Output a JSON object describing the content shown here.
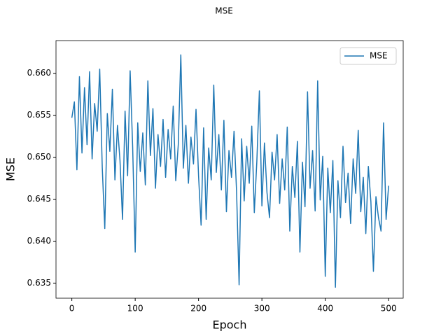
{
  "chart_data": {
    "type": "line",
    "title": "MSE",
    "xlabel": "Epoch",
    "ylabel": "MSE",
    "x": [
      0,
      4,
      8,
      12,
      16,
      20,
      24,
      28,
      32,
      36,
      40,
      44,
      48,
      52,
      56,
      60,
      64,
      68,
      72,
      76,
      80,
      84,
      88,
      92,
      96,
      100,
      104,
      108,
      112,
      116,
      120,
      124,
      128,
      132,
      136,
      140,
      144,
      148,
      152,
      156,
      160,
      164,
      168,
      172,
      176,
      180,
      184,
      188,
      192,
      196,
      200,
      204,
      208,
      212,
      216,
      220,
      224,
      228,
      232,
      236,
      240,
      244,
      248,
      252,
      256,
      260,
      264,
      268,
      272,
      276,
      280,
      284,
      288,
      292,
      296,
      300,
      304,
      308,
      312,
      316,
      320,
      324,
      328,
      332,
      336,
      340,
      344,
      348,
      352,
      356,
      360,
      364,
      368,
      372,
      376,
      380,
      384,
      388,
      392,
      396,
      400,
      404,
      408,
      412,
      416,
      420,
      424,
      428,
      432,
      436,
      440,
      444,
      448,
      452,
      456,
      460,
      464,
      468,
      472,
      476,
      480,
      484,
      488,
      492,
      496,
      500
    ],
    "series": [
      {
        "name": "MSE",
        "color": "#1f77b4",
        "values": [
          0.6547,
          0.6566,
          0.6485,
          0.6596,
          0.6505,
          0.6583,
          0.6515,
          0.6602,
          0.6498,
          0.6564,
          0.6531,
          0.6605,
          0.6488,
          0.6415,
          0.6552,
          0.6507,
          0.6581,
          0.6473,
          0.6538,
          0.6496,
          0.6426,
          0.6555,
          0.6478,
          0.6603,
          0.6512,
          0.6387,
          0.6541,
          0.6483,
          0.6529,
          0.6467,
          0.6591,
          0.6502,
          0.6558,
          0.6463,
          0.6527,
          0.6489,
          0.6545,
          0.6476,
          0.6533,
          0.6498,
          0.6561,
          0.6472,
          0.6515,
          0.6622,
          0.6487,
          0.6538,
          0.6469,
          0.6524,
          0.6492,
          0.6557,
          0.6478,
          0.6419,
          0.6535,
          0.6426,
          0.6511,
          0.6473,
          0.6586,
          0.6482,
          0.6527,
          0.6461,
          0.6544,
          0.6435,
          0.6508,
          0.6476,
          0.6531,
          0.6459,
          0.6348,
          0.6522,
          0.6448,
          0.6513,
          0.6469,
          0.6537,
          0.6434,
          0.6495,
          0.6579,
          0.6442,
          0.6517,
          0.6458,
          0.6428,
          0.6506,
          0.6473,
          0.6527,
          0.6445,
          0.6498,
          0.6461,
          0.6536,
          0.6412,
          0.6489,
          0.6452,
          0.6519,
          0.6387,
          0.6494,
          0.6441,
          0.6578,
          0.6463,
          0.6508,
          0.6436,
          0.6591,
          0.6449,
          0.6501,
          0.6358,
          0.6487,
          0.6434,
          0.6496,
          0.6345,
          0.6472,
          0.6428,
          0.6513,
          0.6446,
          0.6481,
          0.6421,
          0.6498,
          0.6457,
          0.6532,
          0.6435,
          0.6476,
          0.6409,
          0.6489,
          0.6447,
          0.6364,
          0.6453,
          0.6428,
          0.6412,
          0.6541,
          0.6426,
          0.6466
        ]
      }
    ],
    "xlim": [
      -25,
      523
    ],
    "ylim": [
      0.6332,
      0.6639
    ],
    "xticks": [
      0,
      100,
      200,
      300,
      400,
      500
    ],
    "yticks": [
      0.635,
      {
        "value": 0.64,
        "label": "0.640"
      },
      0.645,
      {
        "value": 0.65,
        "label": "0.650"
      },
      0.655,
      {
        "value": 0.66,
        "label": "0.660"
      }
    ],
    "legend": "upper right"
  }
}
